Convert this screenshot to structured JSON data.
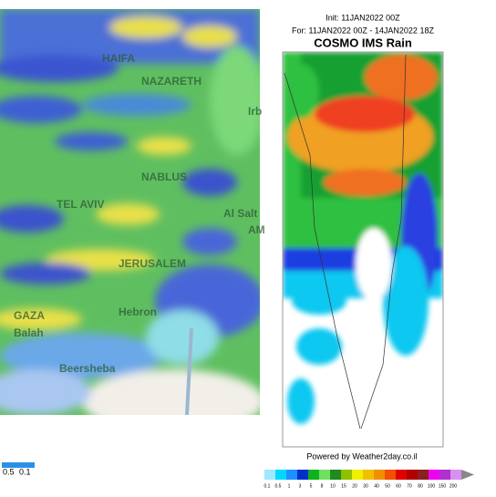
{
  "left_map": {
    "places": [
      "HAIFA",
      "NAZARETH",
      "Irb",
      "NABLUS",
      "TEL AVIV",
      "Al Salt",
      "AM",
      "JERUSALEM",
      "Hebron",
      "GAZA",
      "Balah",
      "Beersheba"
    ],
    "legend": [
      "0.5",
      "0.1"
    ]
  },
  "right_map": {
    "init": "Init: 11JAN2022 00Z",
    "period": "For: 11JAN2022 00Z - 14JAN2022 18Z",
    "title": "COSMO IMS Rain",
    "credit": "Powered by Weather2day.co.il",
    "scale": [
      "0.1",
      "0.5",
      "1",
      "3",
      "5",
      "8",
      "10",
      "15",
      "20",
      "30",
      "40",
      "50",
      "60",
      "70",
      "80",
      "100",
      "150",
      "200"
    ]
  }
}
